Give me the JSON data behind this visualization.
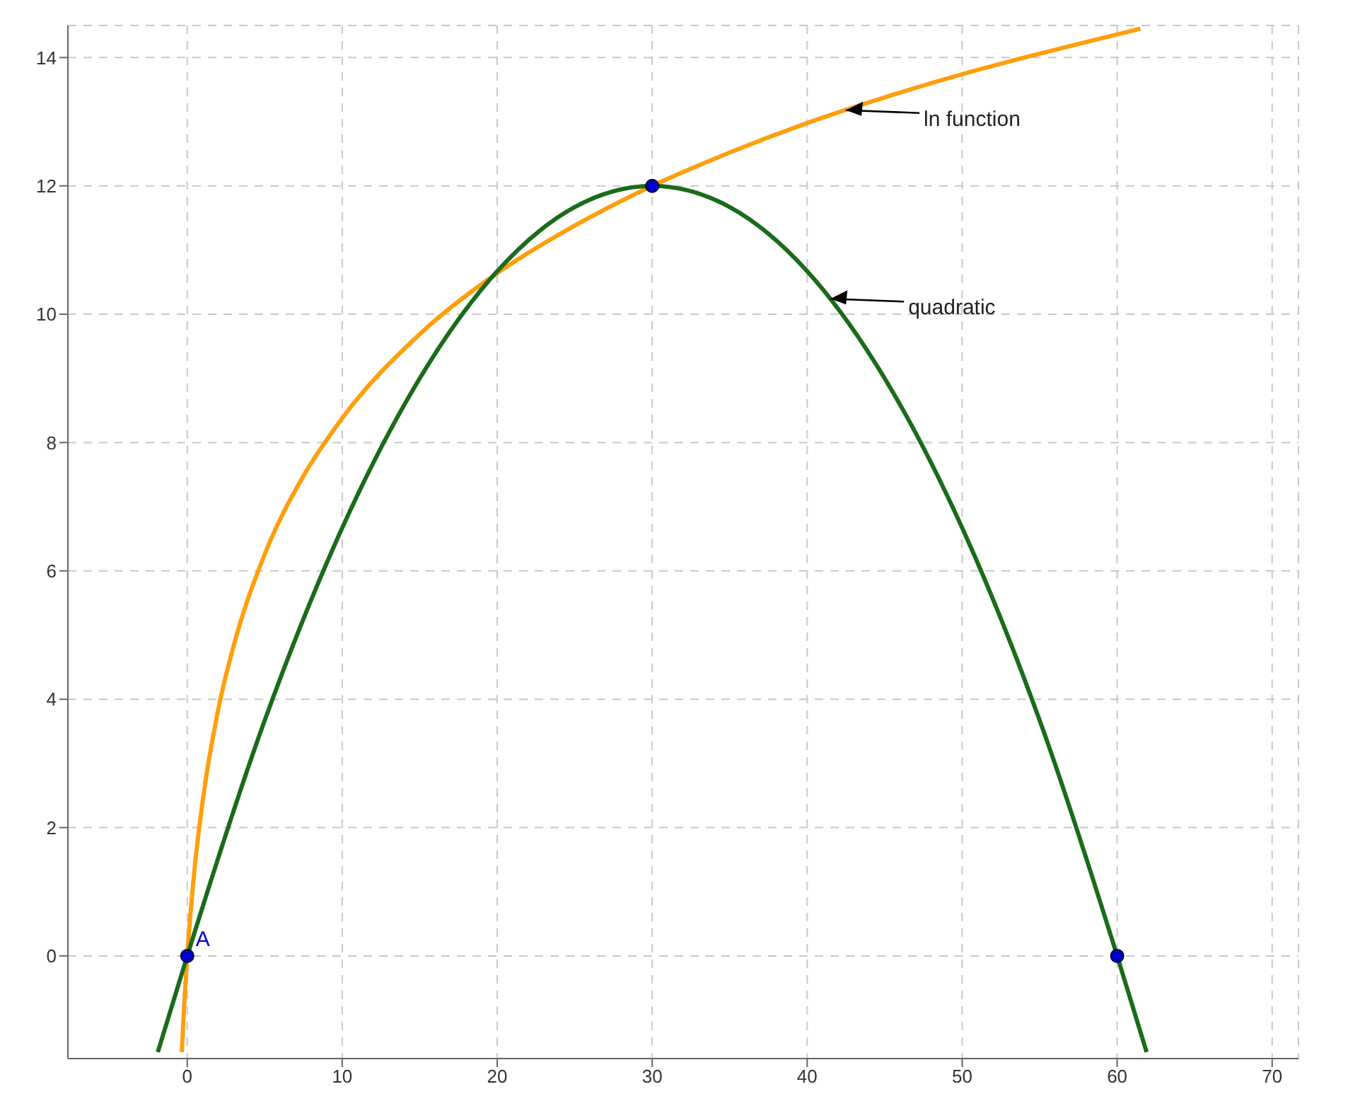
{
  "chart_data": {
    "type": "line",
    "xlim": [
      -7.7,
      71.7
    ],
    "ylim": [
      -1.6,
      14.5
    ],
    "xticks": [
      0,
      10,
      20,
      30,
      40,
      50,
      60,
      70
    ],
    "yticks": [
      0,
      2,
      4,
      6,
      8,
      10,
      12,
      14
    ],
    "grid": true,
    "line_style": "solid",
    "series": [
      {
        "color": "#ff9e0b",
        "x": [
          -0.35,
          -0.2,
          0,
          0.5,
          1,
          2,
          3,
          5,
          7.5,
          10,
          15,
          20,
          25,
          30,
          35,
          40,
          45,
          50,
          55,
          60,
          61.5
        ],
        "values": [
          -1.5,
          -0.78,
          0,
          1.42,
          2.42,
          3.84,
          4.84,
          6.26,
          7.48,
          8.38,
          9.69,
          10.64,
          11.38,
          12,
          12.52,
          12.98,
          13.38,
          13.74,
          14.06,
          14.36,
          14.45
        ]
      },
      {
        "color": "#1a6b1a",
        "x": [
          -1.9,
          0,
          5,
          10,
          15,
          20,
          25,
          30,
          35,
          40,
          45,
          50,
          55,
          60,
          61.9
        ],
        "values": [
          -1.5,
          0,
          3.67,
          6.67,
          9,
          10.67,
          11.67,
          12,
          11.67,
          10.67,
          9,
          6.67,
          3.67,
          0,
          -1.5
        ]
      },
      {
        "type": "scatter",
        "color": "#0000cc",
        "x": [
          0,
          30,
          60
        ],
        "values": [
          0,
          12,
          0
        ]
      }
    ],
    "annotations": [
      {
        "text": "ln function",
        "x": 42.5,
        "y": 13.18
      },
      {
        "text": "quadratic",
        "x": 41.5,
        "y": 10.24
      },
      {
        "text": "A",
        "x": 0,
        "y": 0
      }
    ]
  }
}
